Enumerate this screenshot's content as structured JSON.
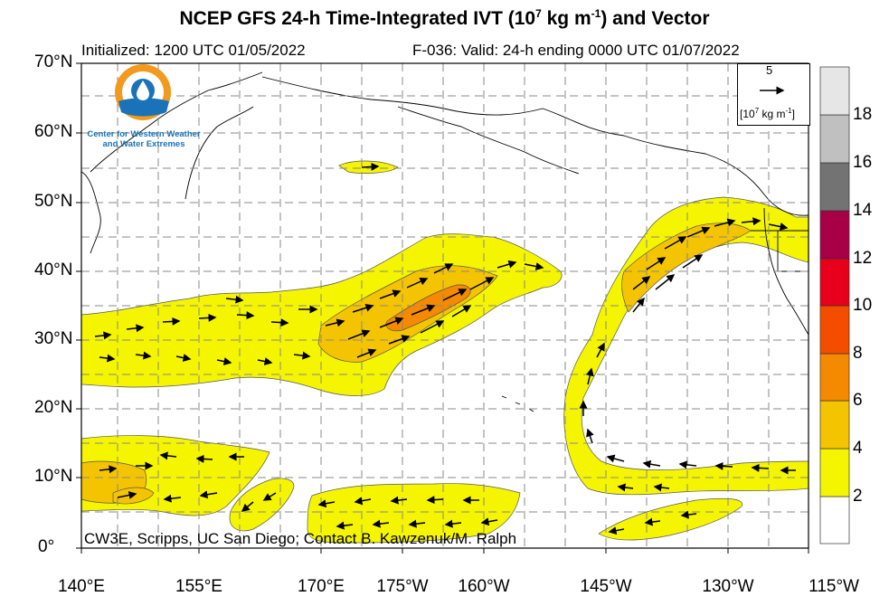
{
  "title": {
    "prefix": "NCEP GFS 24-h Time-Integrated IVT (10",
    "exp1": "7",
    "mid": " kg m",
    "exp2": "-1",
    "suffix": ") and Vector"
  },
  "subtitle_left": "Initialized: 1200 UTC 01/05/2022",
  "subtitle_right": "F-036: Valid: 24-h ending 0000 UTC 01/07/2022",
  "lat_labels": [
    "70°N",
    "60°N",
    "50°N",
    "40°N",
    "30°N",
    "20°N",
    "10°N",
    "0°"
  ],
  "lon_labels": [
    "140°E",
    "155°E",
    "170°E",
    "175°W",
    "160°W",
    "145°W",
    "130°W",
    "115°W"
  ],
  "colorbar": {
    "labels": [
      "2",
      "4",
      "6",
      "8",
      "10",
      "12",
      "14",
      "16",
      "18"
    ],
    "colors": [
      "#ffffff",
      "#f5f500",
      "#f5c400",
      "#f58a00",
      "#f54d00",
      "#e8001a",
      "#a80047",
      "#737373",
      "#c0c0c0",
      "#e6e6e6"
    ]
  },
  "fill_colors": {
    "level2": "#f5f500",
    "level4": "#f5c400",
    "level6": "#f58a00"
  },
  "reference_vector": {
    "value": "5",
    "unit_prefix": "[10",
    "unit_exp": "7",
    "unit_mid": " kg m",
    "unit_exp2": "-1",
    "unit_suffix": "]"
  },
  "logo": {
    "text_line1": "Center for Western Weather",
    "text_line2": "and Water Extremes",
    "icon": "water-drop-logo-icon"
  },
  "credit": "CW3E, Scripps, UC San Diego; Contact B. Kawzenuk/M. Ralph"
}
